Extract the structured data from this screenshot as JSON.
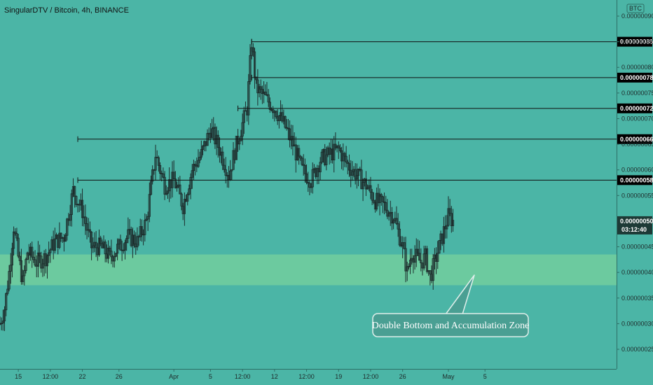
{
  "header": {
    "title": "SingularDTV / Bitcoin, 4h, BINANCE"
  },
  "colors": {
    "background": "#4bb5a6",
    "zone": "#74cf9e",
    "candle": "#1d2b2b",
    "level_line": "#111111",
    "tag_bg": "#000000",
    "annotation_bg": "#4a9f93",
    "annotation_border": "#dfeeea"
  },
  "chart_data": {
    "type": "candlestick",
    "title": "SingularDTV / Bitcoin, 4h, BINANCE",
    "currency_badge": "BTC",
    "y_axis": {
      "ylim": [
        2.2e-07,
        9.3e-07
      ],
      "tick_labels": [
        "0.00000090",
        "0.00000085",
        "0.00000080",
        "0.00000075",
        "0.00000070",
        "0.00000065",
        "0.00000060",
        "0.00000055",
        "0.00000050",
        "0.00000045",
        "0.00000040",
        "0.00000035",
        "0.00000030",
        "0.00000025"
      ]
    },
    "x_axis": {
      "tick_labels": [
        "15",
        "12:00",
        "22",
        "26",
        "Apr",
        "5",
        "12:00",
        "12",
        "12:00",
        "19",
        "12:00",
        "26",
        "May",
        "5"
      ]
    },
    "price_levels": [
      "0.00000085",
      "0.00000078",
      "0.00000072",
      "0.00000066",
      "0.00000058"
    ],
    "current_price": {
      "label": "0.00000050",
      "countdown": "03:12:40"
    },
    "zone": {
      "low": 3.75e-07,
      "high": 4.35e-07
    },
    "annotation": "Double Bottom and Accumulation Zone",
    "series_path_points": [
      [
        "Mar 13",
        3e-07
      ],
      [
        "Mar 13 12:00",
        3.3e-07
      ],
      [
        "Mar 14",
        4e-07
      ],
      [
        "Mar 14 12:00",
        4.9e-07
      ],
      [
        "Mar 15",
        4.3e-07
      ],
      [
        "Mar 15 12:00",
        3.8e-07
      ],
      [
        "Mar 16",
        4.4e-07
      ],
      [
        "Mar 17",
        4.2e-07
      ],
      [
        "Mar 18",
        4.3e-07
      ],
      [
        "Mar 19",
        4.6e-07
      ],
      [
        "Mar 20",
        4.7e-07
      ],
      [
        "Mar 21",
        5.6e-07
      ],
      [
        "Mar 22",
        5.2e-07
      ],
      [
        "Mar 23",
        4.5e-07
      ],
      [
        "Mar 24",
        4.5e-07
      ],
      [
        "Mar 25",
        4.3e-07
      ],
      [
        "Mar 26",
        4.5e-07
      ],
      [
        "Mar 27",
        4.7e-07
      ],
      [
        "Mar 28",
        4.6e-07
      ],
      [
        "Mar 29",
        5e-07
      ],
      [
        "Mar 30",
        6.3e-07
      ],
      [
        "Mar 31",
        5.7e-07
      ],
      [
        "Apr 1",
        5.8e-07
      ],
      [
        "Apr 2",
        5.3e-07
      ],
      [
        "Apr 3",
        6e-07
      ],
      [
        "Apr 4",
        6.3e-07
      ],
      [
        "Apr 5",
        6.8e-07
      ],
      [
        "Apr 6",
        6.4e-07
      ],
      [
        "Apr 7",
        5.9e-07
      ],
      [
        "Apr 8",
        6.6e-07
      ],
      [
        "Apr 9",
        7.2e-07
      ],
      [
        "Apr 9 12:00",
        8.5e-07
      ],
      [
        "Apr 10",
        7.6e-07
      ],
      [
        "Apr 11",
        7.4e-07
      ],
      [
        "Apr 12",
        7.2e-07
      ],
      [
        "Apr 13",
        6.9e-07
      ],
      [
        "Apr 14",
        6.5e-07
      ],
      [
        "Apr 15",
        6e-07
      ],
      [
        "Apr 16",
        5.8e-07
      ],
      [
        "Apr 17",
        6.2e-07
      ],
      [
        "Apr 18",
        6.3e-07
      ],
      [
        "Apr 19",
        6.4e-07
      ],
      [
        "Apr 20",
        6.1e-07
      ],
      [
        "Apr 21",
        5.9e-07
      ],
      [
        "Apr 22",
        5.7e-07
      ],
      [
        "Apr 23",
        5.4e-07
      ],
      [
        "Apr 24",
        5.3e-07
      ],
      [
        "Apr 25",
        5.1e-07
      ],
      [
        "Apr 26",
        4.5e-07
      ],
      [
        "Apr 26 12:00",
        4e-07
      ],
      [
        "Apr 27",
        4.4e-07
      ],
      [
        "Apr 28",
        4.2e-07
      ],
      [
        "Apr 28 12:00",
        4.3e-07
      ],
      [
        "Apr 29",
        3.9e-07
      ],
      [
        "Apr 29 12:00",
        4.2e-07
      ],
      [
        "Apr 30",
        4.5e-07
      ],
      [
        "Apr 30 12:00",
        4.8e-07
      ],
      [
        "May 1",
        5.1e-07
      ],
      [
        "May 1 12:00",
        5e-07
      ]
    ]
  }
}
